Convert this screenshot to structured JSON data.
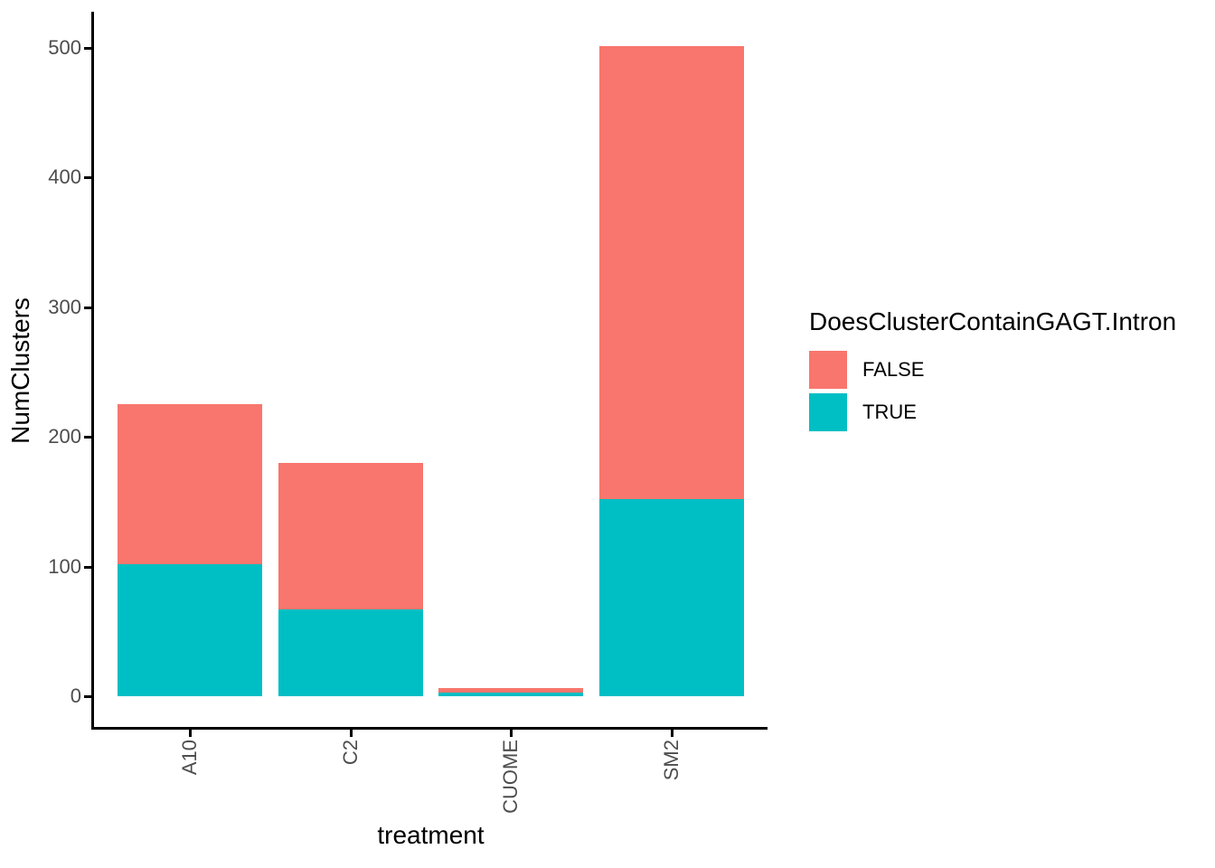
{
  "chart_data": {
    "type": "bar",
    "stacked": true,
    "title": "",
    "xlabel": "treatment",
    "ylabel": "NumClusters",
    "categories": [
      "A10",
      "C2",
      "CUOME",
      "SM2"
    ],
    "series": [
      {
        "name": "FALSE",
        "color": "#F8766D",
        "values": [
          123,
          113,
          3,
          349
        ]
      },
      {
        "name": "TRUE",
        "color": "#00BFC4",
        "values": [
          102,
          67,
          3,
          152
        ]
      }
    ],
    "totals": [
      225,
      180,
      6,
      501
    ],
    "yticks": [
      0,
      100,
      200,
      300,
      400,
      500
    ],
    "ylim": [
      0,
      500
    ],
    "grid": false,
    "legend": {
      "title": "DoesClusterContainGAGT.Intron",
      "entries": [
        "FALSE",
        "TRUE"
      ],
      "position": "right"
    },
    "axis_color": "#000000",
    "tick_label_color": "#4D4D4D"
  }
}
